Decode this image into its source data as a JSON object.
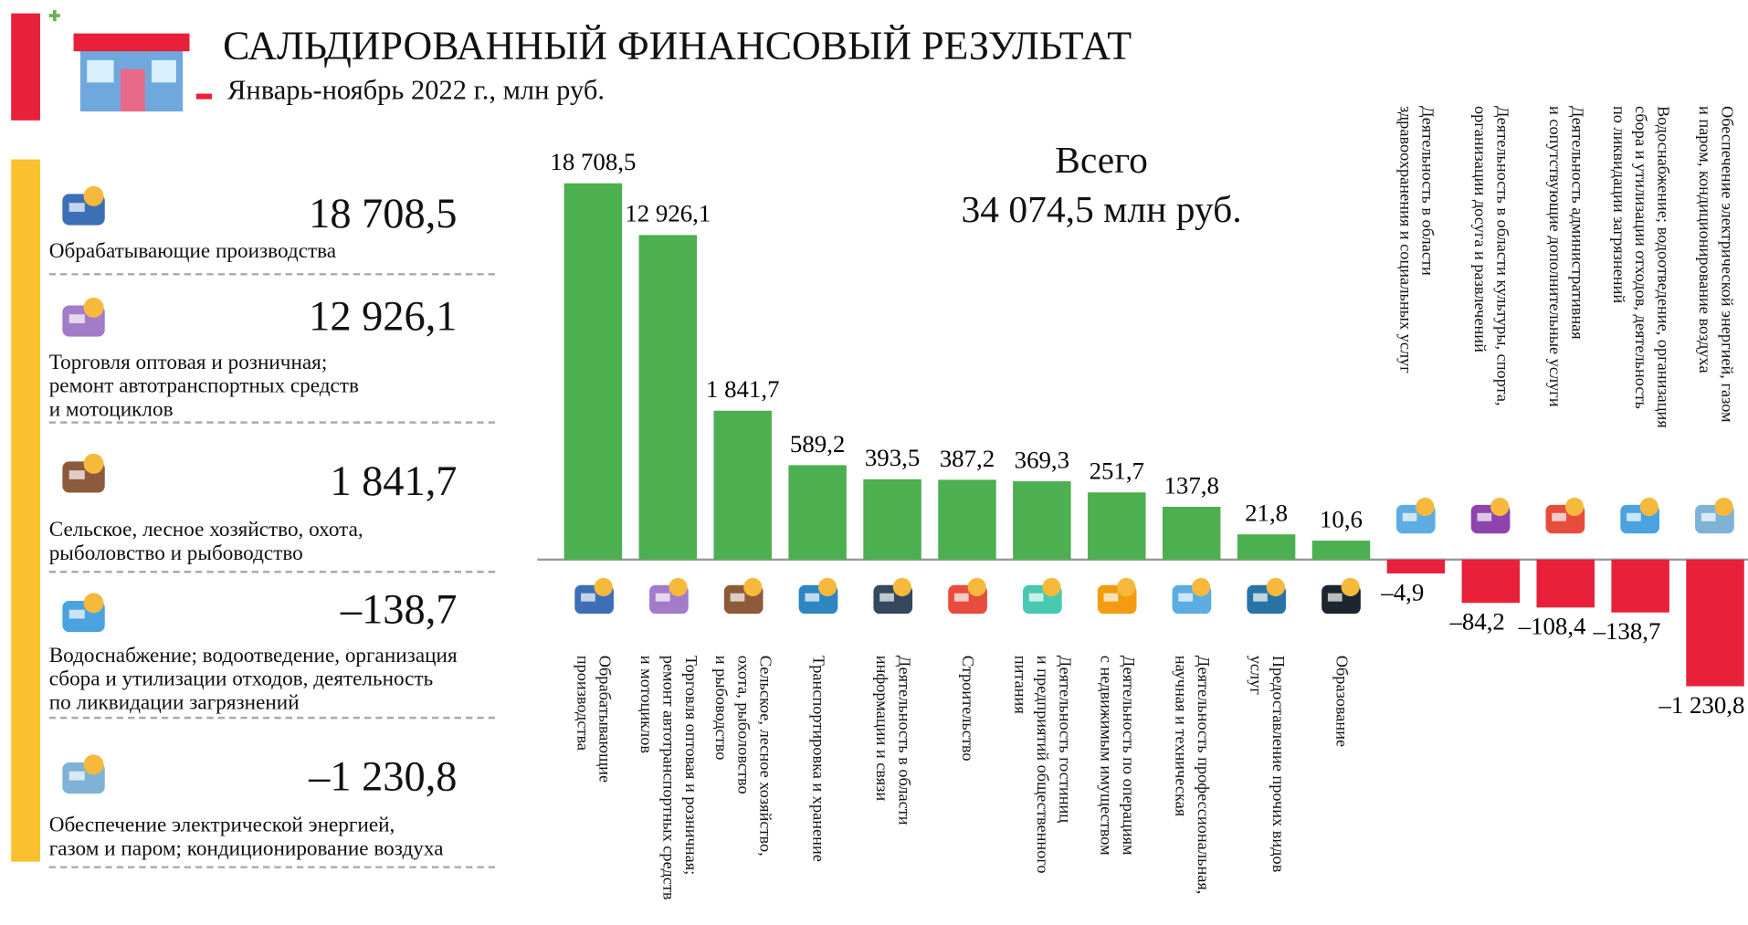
{
  "header": {
    "title": "САЛЬДИРОВАННЫЙ ФИНАНСОВЫЙ РЕЗУЛЬТАТ",
    "subtitle": "Январь-ноябрь 2022 г., млн руб."
  },
  "summary": {
    "label": "Всего",
    "total": "34 074,5 млн руб."
  },
  "panel": [
    {
      "value": "18 708,5",
      "name": "Обрабатывающие производства"
    },
    {
      "value": "12 926,1",
      "name": "Торговля оптовая и розничная;\nремонт автотранспортных средств\nи мотоциклов"
    },
    {
      "value": "1 841,7",
      "name": "Сельское, лесное хозяйство, охота,\nрыболовство и рыбоводство"
    },
    {
      "value": "–138,7",
      "name": "Водоснабжение; водоотведение, организация\nсбора и утилизации отходов, деятельность\nпо ликвидации загрязнений"
    },
    {
      "value": "–1 230,8",
      "name": "Обеспечение электрической энергией,\nгазом и паром; кондиционирование воздуха"
    }
  ],
  "chart_data": {
    "type": "bar",
    "categories": [
      "Обрабатывающие\nпроизводства",
      "Торговля оптовая и розничная;\nремонт автотранспортных средств\nи мотоциклов",
      "Сельское, лесное хозяйство,\nохота, рыболовство\nи рыбоводство",
      "Транспортировка и хранение",
      "Деятельность в области\nинформации и связи",
      "Строительство",
      "Деятельность гостиниц\nи предприятий общественного\nпитания",
      "Деятельность по операциям\nс недвижимым имуществом",
      "Деятельность профессиональная,\nнаучная и техническая",
      "Предоставление прочих видов\nуслуг",
      "Образование",
      "Деятельность в области\nздравоохранения и социальных услуг",
      "Деятельность в области культуры, спорта,\nорганизации досуга и развлечений",
      "Деятельность административная\nи сопутствующие дополнительные услуги",
      "Водоснабжение; водоотведение, организация\nсбора и утилизации отходов, деятельность\nпо ликвидации загрязнений",
      "Обеспечение электрической энергией, газом\nи паром, кондиционирование воздуха"
    ],
    "values": [
      18708.5,
      12926.1,
      1841.7,
      589.2,
      393.5,
      387.2,
      369.3,
      251.7,
      137.8,
      21.8,
      10.6,
      -4.9,
      -84.2,
      -108.4,
      -138.7,
      -1230.8
    ],
    "value_labels": [
      "18 708,5",
      "12 926,1",
      "1 841,7",
      "589,2",
      "393,5",
      "387,2",
      "369,3",
      "251,7",
      "137,8",
      "21,8",
      "10,6",
      "–4,9",
      "–84,2",
      "–108,4",
      "–138,7",
      "–1 230,8"
    ],
    "positive_color": "#4caf50",
    "negative_color": "#e8203a"
  }
}
